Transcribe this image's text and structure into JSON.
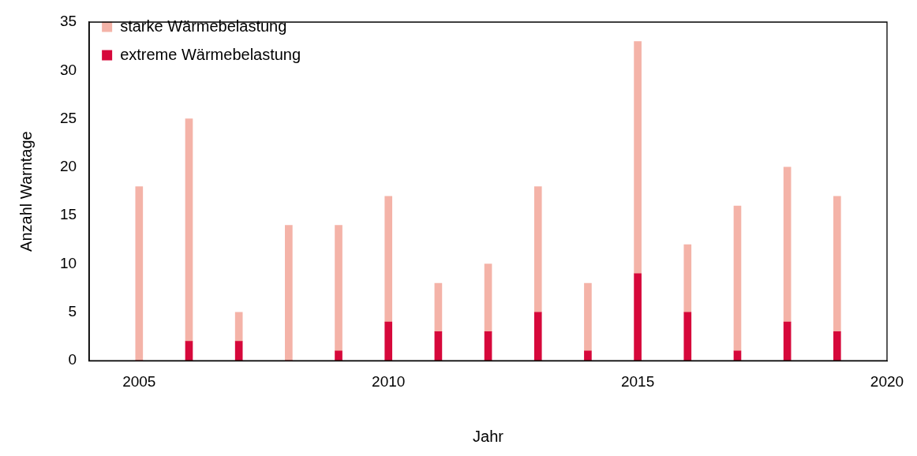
{
  "chart_data": {
    "type": "bar",
    "xlabel": "Jahr",
    "ylabel": "Anzahl Warntage",
    "x": [
      2005,
      2006,
      2007,
      2008,
      2009,
      2010,
      2011,
      2012,
      2013,
      2014,
      2015,
      2016,
      2017,
      2018,
      2019
    ],
    "series": [
      {
        "name": "extreme Wärmebelastung",
        "color": "#d6083b",
        "values": [
          0,
          2,
          2,
          0,
          1,
          4,
          3,
          3,
          5,
          1,
          9,
          5,
          1,
          4,
          3
        ]
      },
      {
        "name": "starke Wärmebelastung",
        "color": "#f4b3a8",
        "values": [
          18,
          23,
          3,
          14,
          13,
          13,
          5,
          7,
          13,
          7,
          24,
          7,
          15,
          16,
          14
        ]
      }
    ],
    "stacked": true,
    "xlim": [
      2004,
      2020
    ],
    "xticks": [
      2005,
      2010,
      2015,
      2020
    ],
    "ylim": [
      0,
      35
    ],
    "yticks": [
      0,
      5,
      10,
      15,
      20,
      25,
      30,
      35
    ],
    "grid": false,
    "legend": "top left"
  }
}
